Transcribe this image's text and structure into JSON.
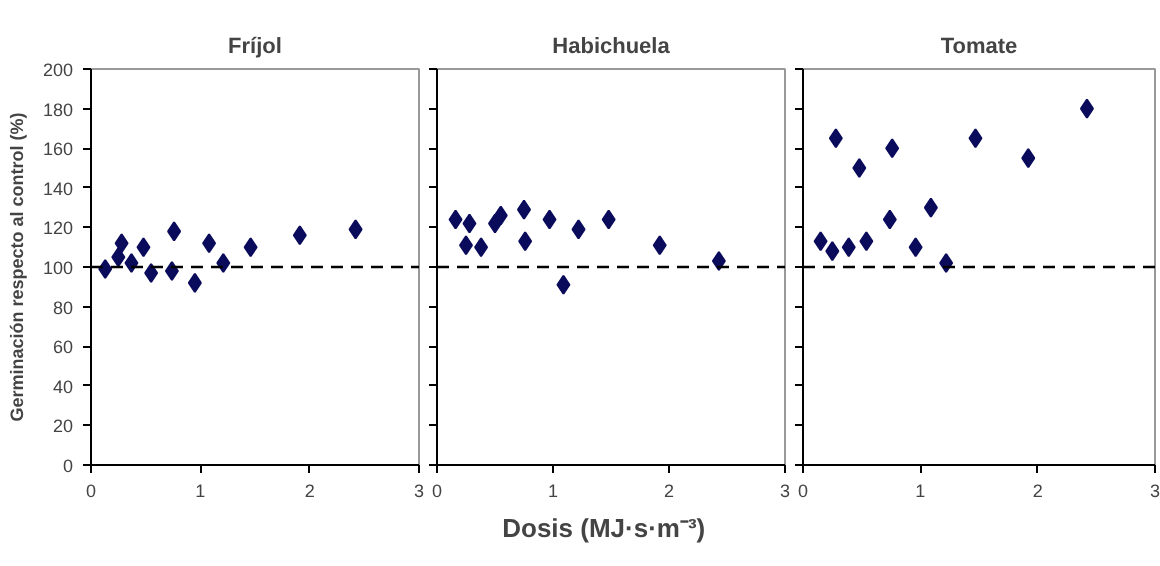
{
  "chart_data": [
    {
      "type": "scatter",
      "title": "Fríjol",
      "ylabel": "Germinación respecto al control (%)",
      "x": [
        0.13,
        0.25,
        0.28,
        0.37,
        0.48,
        0.55,
        0.74,
        0.76,
        0.95,
        1.08,
        1.21,
        1.46,
        1.91,
        2.42
      ],
      "series": [
        {
          "color": "#0b0b5c",
          "values": [
            99,
            105,
            112,
            102,
            110,
            97,
            98,
            118,
            92,
            112,
            102,
            110,
            116,
            119
          ]
        }
      ],
      "xlim": [
        0,
        3
      ],
      "xticks": [
        0,
        1,
        2,
        3
      ],
      "ylim": [
        0,
        200
      ],
      "yticks": [
        0,
        20,
        40,
        60,
        80,
        100,
        120,
        140,
        160,
        180,
        200
      ],
      "marker": "diamond",
      "grid": false,
      "ref_lines": [
        {
          "axis": "y",
          "value": 100,
          "color": "#000000",
          "line_style": "dashed"
        }
      ]
    },
    {
      "type": "scatter",
      "title": "Habichuela",
      "xlabel": "Dosis   (MJ·s·m⁻³)",
      "x": [
        0.16,
        0.28,
        0.25,
        0.38,
        0.5,
        0.55,
        0.75,
        0.76,
        0.97,
        1.09,
        1.22,
        1.48,
        1.92,
        2.43
      ],
      "series": [
        {
          "color": "#0b0b5c",
          "values": [
            124,
            122,
            111,
            110,
            122,
            126,
            129,
            113,
            124,
            91,
            119,
            124,
            111,
            103
          ]
        }
      ],
      "xlim": [
        0,
        3
      ],
      "xticks": [
        0,
        1,
        2,
        3
      ],
      "ylim": [
        0,
        200
      ],
      "yticks": [
        0,
        20,
        40,
        60,
        80,
        100,
        120,
        140,
        160,
        180,
        200
      ],
      "marker": "diamond",
      "grid": false,
      "tick_labels": "x",
      "ref_lines": [
        {
          "axis": "y",
          "value": 100,
          "color": "#000000",
          "line_style": "dashed"
        }
      ]
    },
    {
      "type": "scatter",
      "title": "Tomate",
      "x": [
        0.15,
        0.25,
        0.28,
        0.39,
        0.48,
        0.54,
        0.74,
        0.76,
        0.96,
        1.09,
        1.22,
        1.47,
        1.92,
        2.42
      ],
      "series": [
        {
          "color": "#0b0b5c",
          "values": [
            113,
            108,
            165,
            110,
            150,
            113,
            124,
            160,
            110,
            130,
            102,
            165,
            155,
            180
          ]
        }
      ],
      "xlim": [
        0,
        3
      ],
      "xticks": [
        0,
        1,
        2,
        3
      ],
      "ylim": [
        0,
        200
      ],
      "yticks": [
        0,
        20,
        40,
        60,
        80,
        100,
        120,
        140,
        160,
        180,
        200
      ],
      "marker": "diamond",
      "grid": false,
      "tick_labels": "x",
      "ref_lines": [
        {
          "axis": "y",
          "value": 100,
          "color": "#000000",
          "line_style": "dashed"
        }
      ]
    }
  ]
}
